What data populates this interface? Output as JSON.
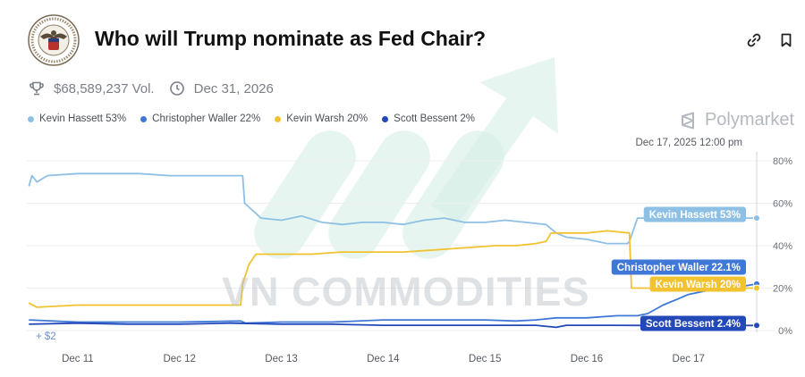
{
  "header": {
    "title": "Who will Trump nominate as Fed Chair?",
    "volume": "$68,589,237 Vol.",
    "end_date": "Dec 31, 2026"
  },
  "brand": {
    "name": "Polymarket"
  },
  "watermark": "VN COMMODITIES",
  "timestamp": "Dec 17, 2025 12:00 pm",
  "volume_marker": "+ $2",
  "colors": {
    "hassett": "#8ec0e6",
    "waller": "#3f78d6",
    "warsh": "#f2c230",
    "bessent": "#2348b8",
    "watermark_arrow": "#d3ede4"
  },
  "chart_data": {
    "type": "line",
    "title": "Who will Trump nominate as Fed Chair?",
    "xlabel": "",
    "ylabel": "",
    "x_ticks": [
      "Dec 11",
      "Dec 12",
      "Dec 13",
      "Dec 14",
      "Dec 15",
      "Dec 16",
      "Dec 17"
    ],
    "x_range": [
      10.5,
      17.67
    ],
    "ylim": [
      0,
      80
    ],
    "y_ticks": [
      0,
      20,
      40,
      60,
      80
    ],
    "y_tick_labels": [
      "0%",
      "20%",
      "40%",
      "60%",
      "80%"
    ],
    "legend_position": "top-left",
    "series": [
      {
        "name": "Kevin Hassett",
        "legend": "Kevin Hassett 53%",
        "end_label": "Kevin Hassett 53%",
        "color": "#8ec0e6",
        "x": [
          10.52,
          10.55,
          10.6,
          10.7,
          11.0,
          11.3,
          11.6,
          11.9,
          12.2,
          12.5,
          12.62,
          12.64,
          12.8,
          13.0,
          13.2,
          13.4,
          13.6,
          13.8,
          14.0,
          14.2,
          14.4,
          14.6,
          14.8,
          15.0,
          15.2,
          15.4,
          15.6,
          15.7,
          15.8,
          16.0,
          16.2,
          16.4,
          16.42,
          16.5,
          16.7,
          16.9,
          17.1,
          17.3,
          17.5,
          17.67
        ],
        "values": [
          68,
          73,
          70,
          73,
          74,
          74,
          74,
          73,
          73,
          73,
          73,
          60,
          53,
          52,
          54,
          51,
          50,
          51,
          51,
          50,
          52,
          53,
          51,
          51,
          52,
          51,
          50,
          46,
          44,
          43,
          41,
          41,
          42,
          53,
          53,
          53,
          53,
          53,
          53,
          53
        ]
      },
      {
        "name": "Christopher Waller",
        "legend": "Christopher Waller 22%",
        "end_label": "Christopher Waller 22.1%",
        "color": "#3f78d6",
        "x": [
          10.52,
          11.0,
          11.5,
          12.0,
          12.6,
          12.65,
          13.0,
          13.5,
          14.0,
          14.5,
          15.0,
          15.3,
          15.5,
          15.7,
          16.0,
          16.3,
          16.5,
          16.6,
          16.75,
          16.9,
          17.0,
          17.2,
          17.4,
          17.55,
          17.67
        ],
        "values": [
          5,
          4,
          4,
          4,
          4.5,
          3.5,
          4,
          4,
          5,
          5,
          5,
          4.5,
          5,
          6,
          6,
          7,
          7,
          8,
          12,
          15,
          17,
          19,
          20,
          21,
          22
        ]
      },
      {
        "name": "Kevin Warsh",
        "legend": "Kevin Warsh 20%",
        "end_label": "Kevin Warsh 20%",
        "color": "#f2c230",
        "x": [
          10.52,
          10.6,
          11.0,
          11.5,
          12.0,
          12.5,
          12.6,
          12.62,
          12.68,
          12.75,
          12.8,
          13.0,
          13.3,
          13.6,
          13.9,
          14.2,
          14.5,
          14.8,
          15.1,
          15.3,
          15.5,
          15.6,
          15.65,
          15.8,
          16.0,
          16.2,
          16.42,
          16.44,
          16.6,
          16.8,
          17.0,
          17.3,
          17.67
        ],
        "values": [
          13,
          11,
          12,
          12,
          12,
          12,
          12,
          22,
          31,
          36,
          36,
          36,
          36,
          37,
          37,
          37,
          38,
          39,
          40,
          40,
          41,
          42,
          46,
          46,
          46,
          47,
          46,
          20,
          20,
          20,
          20,
          20,
          20
        ]
      },
      {
        "name": "Scott Bessent",
        "legend": "Scott Bessent 2%",
        "end_label": "Scott Bessent 2.4%",
        "color": "#2348b8",
        "x": [
          10.52,
          11.0,
          11.5,
          12.0,
          12.5,
          13.0,
          13.5,
          14.0,
          14.5,
          15.0,
          15.5,
          15.7,
          15.8,
          16.2,
          16.6,
          17.0,
          17.4,
          17.67
        ],
        "values": [
          3,
          3.5,
          3,
          3,
          3.5,
          3,
          3,
          2.5,
          2.5,
          2.5,
          2.5,
          1.5,
          2.5,
          2.5,
          2.4,
          2.4,
          2.4,
          2.4
        ]
      }
    ]
  }
}
